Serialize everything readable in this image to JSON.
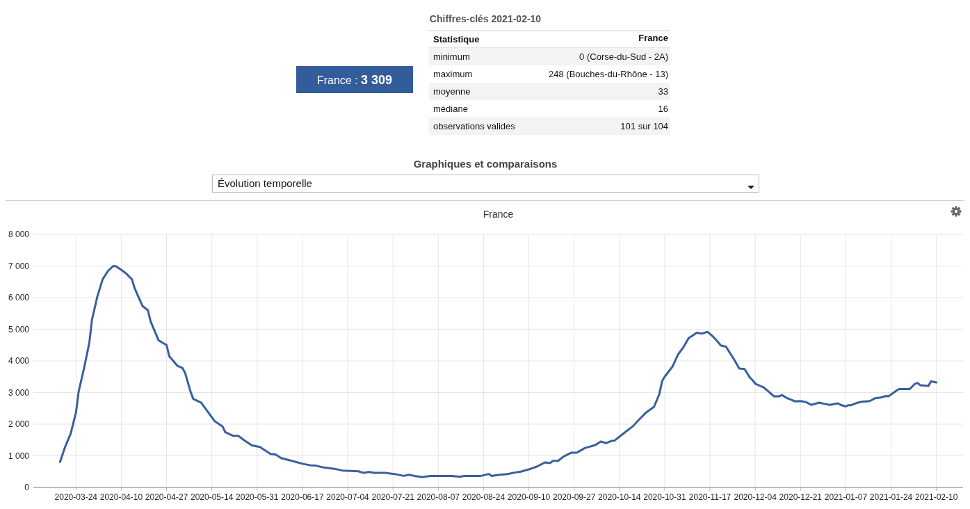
{
  "chart_data": [
    {
      "type": "other",
      "title": "Chiffres-clés 2021-02-10",
      "annotations": [
        "France : 3 309",
        "Statistique",
        "France",
        "minimum",
        "0 (Corse-du-Sud - 2A)",
        "maximum",
        "248 (Bouches-du-Rhône - 13)",
        "moyenne",
        "33",
        "médiane",
        "16",
        "observations valides",
        "101 sur 104",
        "Graphiques et comparaisons",
        "Évolution temporelle"
      ]
    },
    {
      "type": "line",
      "title": "France",
      "grid": true,
      "xlim": [
        "2020-03-08",
        "2021-02-20"
      ],
      "xticks": [
        "2020-03-24",
        "2020-04-10",
        "2020-04-27",
        "2020-05-14",
        "2020-05-31",
        "2020-06-17",
        "2020-07-04",
        "2020-07-21",
        "2020-08-07",
        "2020-08-24",
        "2020-09-10",
        "2020-09-27",
        "2020-10-14",
        "2020-10-31",
        "2020-11-17",
        "2020-12-04",
        "2020-12-21",
        "2021-01-07",
        "2021-01-24",
        "2021-02-10"
      ],
      "ylim": [
        0,
        8000
      ],
      "yticks": [
        0,
        {
          "value": 1000,
          "label": "1 000"
        },
        {
          "value": 2000,
          "label": "2 000"
        },
        {
          "value": 3000,
          "label": "3 000"
        },
        {
          "value": 4000,
          "label": "4 000"
        },
        {
          "value": 5000,
          "label": "5 000"
        },
        {
          "value": 6000,
          "label": "6 000"
        },
        {
          "value": 7000,
          "label": "7 000"
        },
        {
          "value": 8000,
          "label": "8 000"
        }
      ],
      "series": [
        {
          "color": "#3a5f9e",
          "x": [
            "2020-03-18",
            "2020-03-20",
            "2020-03-22",
            "2020-03-24",
            "2020-03-25",
            "2020-03-27",
            "2020-03-29",
            "2020-03-30",
            "2020-04-01",
            "2020-04-03",
            "2020-04-05",
            "2020-04-07",
            "2020-04-08",
            "2020-04-10",
            "2020-04-12",
            "2020-04-13",
            "2020-04-14",
            "2020-04-15",
            "2020-04-18",
            "2020-04-20",
            "2020-04-21",
            "2020-04-24",
            "2020-04-27",
            "2020-04-28",
            "2020-05-01",
            "2020-05-03",
            "2020-05-04",
            "2020-05-06",
            "2020-05-07",
            "2020-05-10",
            "2020-05-12",
            "2020-05-15",
            "2020-05-18",
            "2020-05-19",
            "2020-05-22",
            "2020-05-24",
            "2020-05-26",
            "2020-05-29",
            "2020-06-01",
            "2020-06-05",
            "2020-06-07",
            "2020-06-09",
            "2020-06-13",
            "2020-06-14",
            "2020-06-17",
            "2020-06-20",
            "2020-06-22",
            "2020-06-25",
            "2020-06-29",
            "2020-07-02",
            "2020-07-08",
            "2020-07-10",
            "2020-07-12",
            "2020-07-14",
            "2020-07-18",
            "2020-07-20",
            "2020-07-22",
            "2020-07-25",
            "2020-07-27",
            "2020-07-29",
            "2020-08-01",
            "2020-08-04",
            "2020-08-08",
            "2020-08-12",
            "2020-08-15",
            "2020-08-17",
            "2020-08-23",
            "2020-08-26",
            "2020-08-27",
            "2020-08-30",
            "2020-09-02",
            "2020-09-05",
            "2020-09-07",
            "2020-09-10",
            "2020-09-13",
            "2020-09-16",
            "2020-09-18",
            "2020-09-19",
            "2020-09-21",
            "2020-09-23",
            "2020-09-26",
            "2020-09-28",
            "2020-10-01",
            "2020-10-05",
            "2020-10-07",
            "2020-10-09",
            "2020-10-11",
            "2020-10-12",
            "2020-10-15",
            "2020-10-19",
            "2020-10-21",
            "2020-10-24",
            "2020-10-27",
            "2020-10-29",
            "2020-10-30",
            "2020-10-31",
            "2020-11-03",
            "2020-11-05",
            "2020-11-07",
            "2020-11-09",
            "2020-11-11",
            "2020-11-12",
            "2020-11-14",
            "2020-11-16",
            "2020-11-18",
            "2020-11-20",
            "2020-11-21",
            "2020-11-23",
            "2020-11-26",
            "2020-11-28",
            "2020-11-30",
            "2020-12-02",
            "2020-12-03",
            "2020-12-04",
            "2020-12-07",
            "2020-12-09",
            "2020-12-11",
            "2020-12-13",
            "2020-12-14",
            "2020-12-16",
            "2020-12-19",
            "2020-12-21",
            "2020-12-23",
            "2020-12-25",
            "2020-12-28",
            "2020-12-30",
            "2021-01-01",
            "2021-01-04",
            "2021-01-05",
            "2021-01-07",
            "2021-01-08",
            "2021-01-09",
            "2021-01-11",
            "2021-01-13",
            "2021-01-16",
            "2021-01-18",
            "2021-01-20",
            "2021-01-22",
            "2021-01-23",
            "2021-01-26",
            "2021-01-27",
            "2021-01-29",
            "2021-01-31",
            "2021-02-02",
            "2021-02-03",
            "2021-02-04",
            "2021-02-07",
            "2021-02-08",
            "2021-02-10"
          ],
          "values": [
            806,
            1300,
            1700,
            2370,
            3030,
            3760,
            4570,
            5300,
            6030,
            6580,
            6840,
            7000,
            6990,
            6880,
            6750,
            6660,
            6580,
            6300,
            5730,
            5600,
            5250,
            4650,
            4500,
            4150,
            3850,
            3770,
            3610,
            3030,
            2800,
            2680,
            2450,
            2100,
            1930,
            1750,
            1630,
            1630,
            1500,
            1330,
            1280,
            1060,
            1040,
            930,
            840,
            820,
            750,
            700,
            690,
            630,
            590,
            535,
            510,
            460,
            490,
            460,
            460,
            440,
            420,
            365,
            400,
            365,
            330,
            365,
            365,
            365,
            340,
            365,
            365,
            425,
            365,
            400,
            425,
            475,
            500,
            570,
            660,
            790,
            770,
            840,
            840,
            975,
            1100,
            1100,
            1245,
            1340,
            1450,
            1400,
            1470,
            1470,
            1670,
            1930,
            2110,
            2370,
            2550,
            2950,
            3355,
            3500,
            3830,
            4200,
            4430,
            4720,
            4830,
            4890,
            4860,
            4920,
            4780,
            4600,
            4490,
            4450,
            4050,
            3760,
            3740,
            3470,
            3390,
            3280,
            3170,
            3030,
            2880,
            2880,
            2920,
            2820,
            2720,
            2730,
            2700,
            2610,
            2680,
            2640,
            2610,
            2660,
            2610,
            2560,
            2600,
            2600,
            2670,
            2710,
            2730,
            2820,
            2840,
            2890,
            2880,
            3060,
            3110,
            3110,
            3110,
            3280,
            3300,
            3230,
            3210,
            3355,
            3320
          ]
        }
      ]
    }
  ]
}
